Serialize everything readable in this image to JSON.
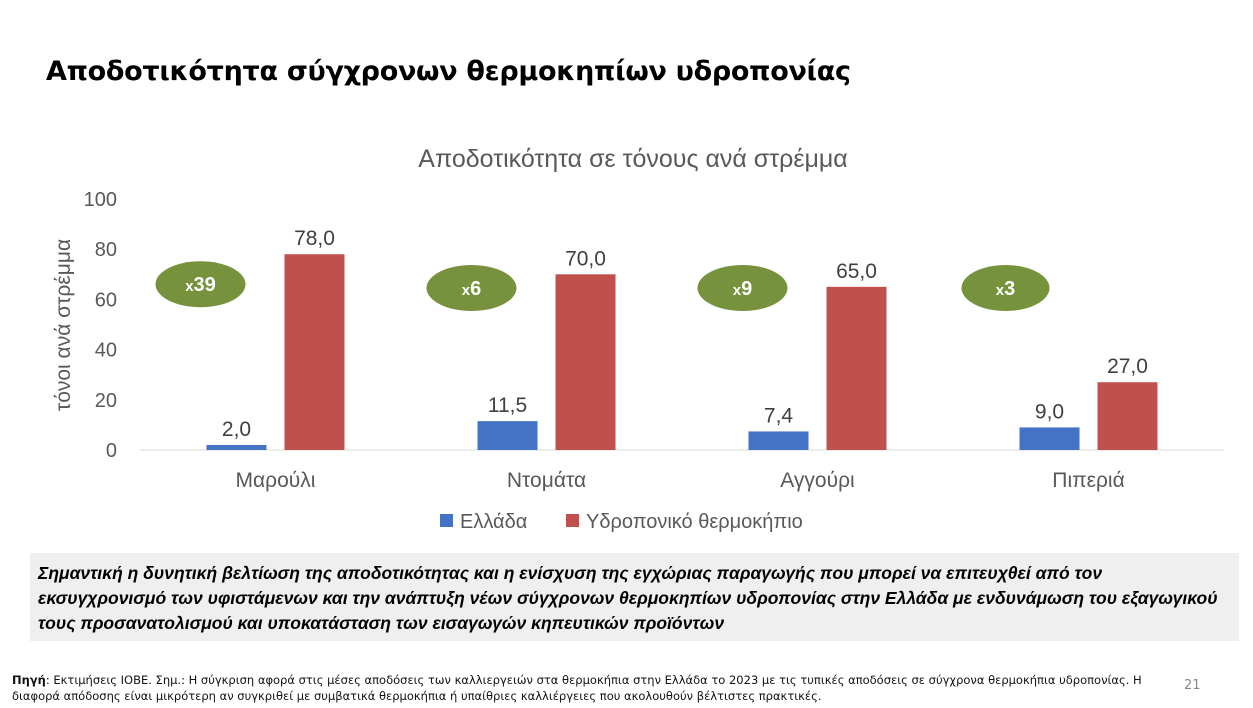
{
  "page": {
    "title": "Αποδοτικότητα σύγχρονων θερμοκηπίων υδροπονίας",
    "summary": "Σημαντική η δυνητική βελτίωση της αποδοτικότητας και η ενίσχυση της εγχώριας παραγωγής που μπορεί να επιτευχθεί από τον εκσυγχρονισμό των υφιστάμενων και την ανάπτυξη νέων σύγχρονων θερμοκηπίων υδροπονίας στην Ελλάδα με ενδυνάμωση του εξαγωγικού τους προσανατολισμού και υποκατάσταση των εισαγωγών κηπευτικών προϊόντων",
    "source_label": "Πηγή",
    "source_text": ": Εκτιμήσεις ΙΟΒΕ. Σημ.: Η σύγκριση αφορά στις μέσες αποδόσεις των καλλιεργειών στα θερμοκήπια στην Ελλάδα το 2023 με τις τυπικές αποδόσεις σε σύγχρονα θερμοκήπια υδροπονίας. Η διαφορά απόδοσης είναι μικρότερη αν συγκριθεί με συμβατικά θερμοκήπια ή υπαίθριες καλλιέργειες που ακολουθούν βέλτιστες πρακτικές.",
    "page_number": "21"
  },
  "chart_data": {
    "type": "bar",
    "title": "Αποδοτικότητα σε τόνους ανά στρέμμα",
    "ylabel": "τόνοι ανά στρέμμα",
    "xlabel": "",
    "ylim": [
      0,
      100
    ],
    "yticks": [
      0,
      20,
      40,
      60,
      80,
      100
    ],
    "grid": false,
    "legend_position": "bottom",
    "categories": [
      "Μαρούλι",
      "Ντομάτα",
      "Αγγούρι",
      "Πιπεριά"
    ],
    "series": [
      {
        "name": "Ελλάδα",
        "color": "#4472C4",
        "values": [
          2.0,
          11.5,
          7.4,
          9.0
        ],
        "labels": [
          "2,0",
          "11,5",
          "7,4",
          "9,0"
        ]
      },
      {
        "name": "Υδροπονικό θερμοκήπιο",
        "color": "#C0504D",
        "values": [
          78.0,
          70.0,
          65.0,
          27.0
        ],
        "labels": [
          "78,0",
          "70,0",
          "65,0",
          "27,0"
        ]
      }
    ],
    "annotations": [
      {
        "category": "Μαρούλι",
        "prefix": "x",
        "value": "39"
      },
      {
        "category": "Ντομάτα",
        "prefix": "x",
        "value": "6"
      },
      {
        "category": "Αγγούρι",
        "prefix": "x",
        "value": "9"
      },
      {
        "category": "Πιπεριά",
        "prefix": "x",
        "value": "3"
      }
    ],
    "annotation_color": "#76923C"
  }
}
